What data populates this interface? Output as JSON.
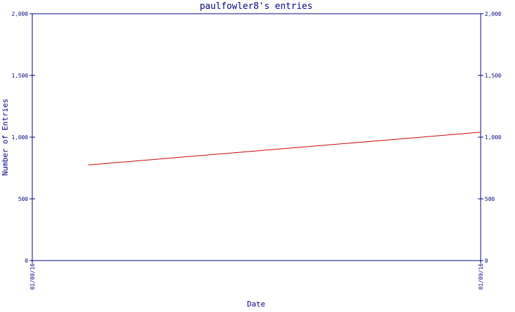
{
  "chart_data": {
    "type": "line",
    "title": "paulfowler8's entries",
    "xlabel": "Date",
    "ylabel": "Number of Entries",
    "ylim": [
      0,
      2000
    ],
    "y_ticks": [
      "0",
      "500",
      "1,000",
      "1,500",
      "2,000"
    ],
    "y_tick_values": [
      0,
      500,
      1000,
      1500,
      2000
    ],
    "x_tick_labels": [
      "01/08/16",
      "01/09/16"
    ],
    "xlim": [
      "2016-01-08",
      "2016-01-09"
    ],
    "grid": false,
    "series": [
      {
        "color": "#cc0000",
        "points": [
          {
            "x": "2016-01-08T03:00",
            "y": 775
          },
          {
            "x": "2016-01-09",
            "y": 1040
          }
        ]
      }
    ],
    "colors": {
      "axis": "#000080",
      "text": "#000080",
      "line": "#cc0000",
      "background": "#ffffff"
    }
  }
}
